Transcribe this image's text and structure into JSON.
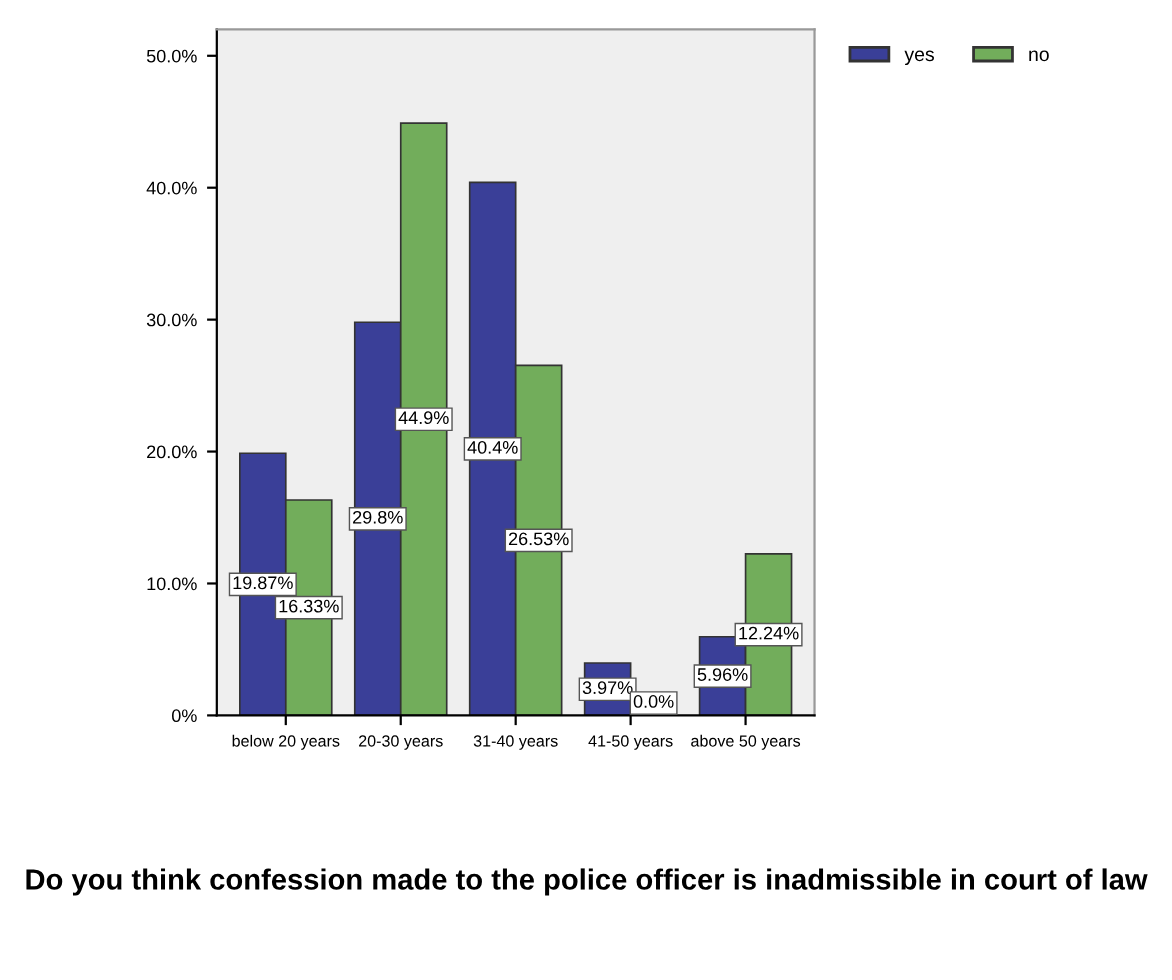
{
  "chart_data": {
    "type": "bar",
    "title": "Do you think confession made to the police officer is inadmissible in court of law",
    "categories": [
      "below 20 years",
      "20-30 years",
      "31-40 years",
      "41-50 years",
      "above 50 years"
    ],
    "series": [
      {
        "name": "yes",
        "color": "#3a3f98",
        "values": [
          19.87,
          29.8,
          40.4,
          3.97,
          5.96
        ],
        "value_labels": [
          "19.87%",
          "29.8%",
          "40.4%",
          "3.97%",
          "5.96%"
        ]
      },
      {
        "name": "no",
        "color": "#72ad5b",
        "values": [
          16.33,
          44.9,
          26.53,
          0.0,
          12.24
        ],
        "value_labels": [
          "16.33%",
          "44.9%",
          "26.53%",
          "0.0%",
          "12.24%"
        ]
      }
    ],
    "ylim": [
      0,
      52
    ],
    "yticks": [
      {
        "value": 0,
        "label": "0%"
      },
      {
        "value": 10,
        "label": "10.0%"
      },
      {
        "value": 20,
        "label": "20.0%"
      },
      {
        "value": 30,
        "label": "30.0%"
      },
      {
        "value": 40,
        "label": "40.0%"
      },
      {
        "value": 50,
        "label": "50.0%"
      }
    ],
    "grid": false,
    "legend": "top right"
  }
}
